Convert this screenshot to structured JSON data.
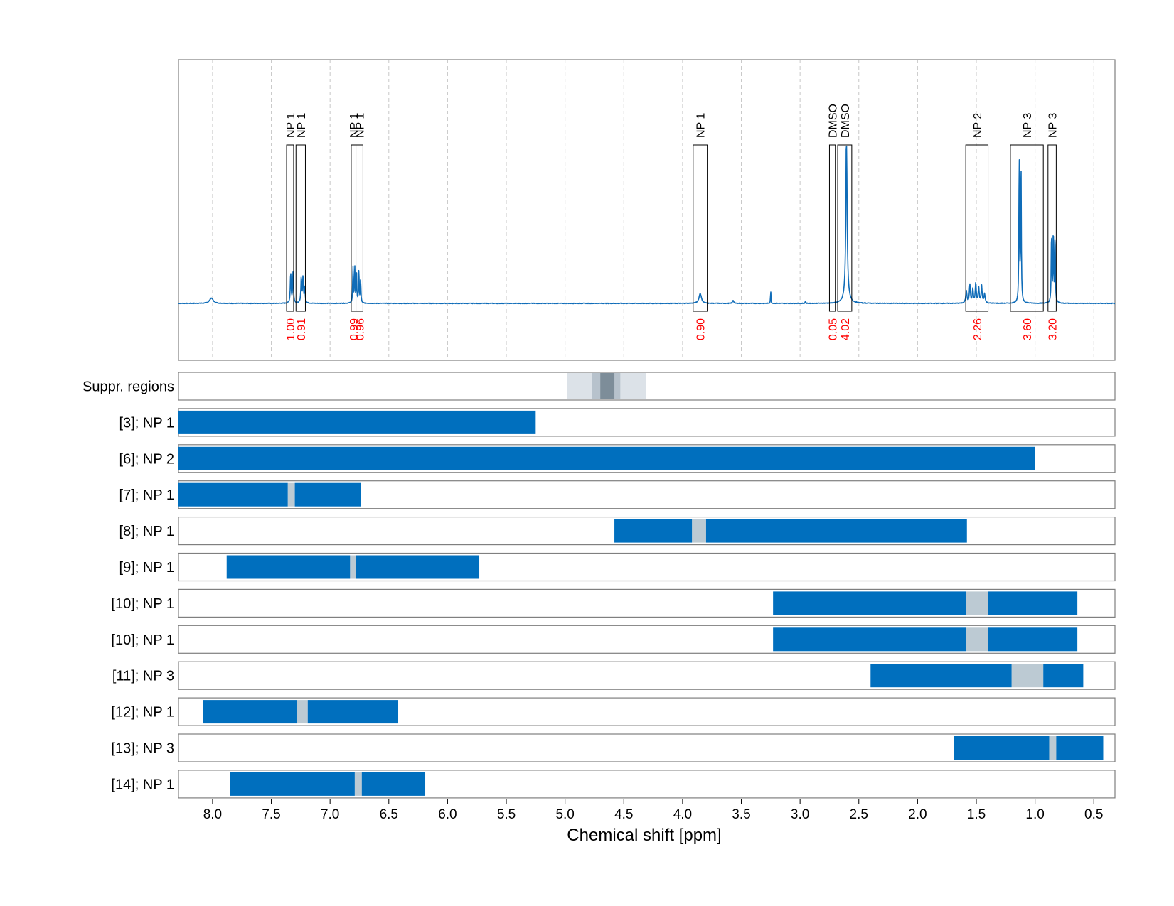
{
  "chart_data": {
    "type": "line",
    "xlabel": "Chemical shift [ppm]",
    "x_axis": {
      "reversed": true,
      "xlim": [
        8.29,
        0.32
      ],
      "ticks": [
        "8.0",
        "7.5",
        "7.0",
        "6.5",
        "6.0",
        "5.5",
        "5.0",
        "4.5",
        "4.0",
        "3.5",
        "3.0",
        "2.5",
        "2.0",
        "1.5",
        "1.0",
        "0.5"
      ]
    },
    "grid": "dashed vertical at each tick",
    "spectrum": {
      "color": "#0f6cb8",
      "baseline_noise": 0.004,
      "peaks": [
        {
          "ppm": 8.01,
          "height": 0.035,
          "width": 0.018
        },
        {
          "ppm": 7.335,
          "height": 0.2,
          "width": 0.004
        },
        {
          "ppm": 7.315,
          "height": 0.2,
          "width": 0.004
        },
        {
          "ppm": 7.245,
          "height": 0.17,
          "width": 0.004
        },
        {
          "ppm": 7.23,
          "height": 0.17,
          "width": 0.004
        },
        {
          "ppm": 7.215,
          "height": 0.1,
          "width": 0.004
        },
        {
          "ppm": 6.805,
          "height": 0.24,
          "width": 0.003
        },
        {
          "ppm": 6.79,
          "height": 0.24,
          "width": 0.003
        },
        {
          "ppm": 6.775,
          "height": 0.2,
          "width": 0.003
        },
        {
          "ppm": 6.755,
          "height": 0.22,
          "width": 0.003
        },
        {
          "ppm": 6.74,
          "height": 0.15,
          "width": 0.003
        },
        {
          "ppm": 3.85,
          "height": 0.065,
          "width": 0.012
        },
        {
          "ppm": 3.57,
          "height": 0.02,
          "width": 0.006
        },
        {
          "ppm": 3.25,
          "height": 0.09,
          "width": 0.002
        },
        {
          "ppm": 2.955,
          "height": 0.012,
          "width": 0.003
        },
        {
          "ppm": 2.605,
          "height": 1.0,
          "width": 0.004
        },
        {
          "ppm": 2.605,
          "height": 0.3,
          "width": 0.012
        },
        {
          "ppm": 1.585,
          "height": 0.08,
          "width": 0.006
        },
        {
          "ppm": 1.555,
          "height": 0.12,
          "width": 0.005
        },
        {
          "ppm": 1.53,
          "height": 0.09,
          "width": 0.005
        },
        {
          "ppm": 1.505,
          "height": 0.13,
          "width": 0.005
        },
        {
          "ppm": 1.48,
          "height": 0.1,
          "width": 0.005
        },
        {
          "ppm": 1.455,
          "height": 0.11,
          "width": 0.005
        },
        {
          "ppm": 1.43,
          "height": 0.06,
          "width": 0.006
        },
        {
          "ppm": 1.135,
          "height": 1.0,
          "width": 0.003
        },
        {
          "ppm": 1.12,
          "height": 0.95,
          "width": 0.003
        },
        {
          "ppm": 0.86,
          "height": 0.48,
          "width": 0.003
        },
        {
          "ppm": 0.845,
          "height": 0.5,
          "width": 0.003
        },
        {
          "ppm": 0.83,
          "height": 0.46,
          "width": 0.003
        }
      ]
    },
    "integrals": [
      {
        "ppm_left": 7.37,
        "ppm_right": 7.31,
        "label": "NP 1",
        "value": "1.00"
      },
      {
        "ppm_left": 7.29,
        "ppm_right": 7.21,
        "label": "NP 1",
        "value": "0.91"
      },
      {
        "ppm_left": 6.82,
        "ppm_right": 6.78,
        "label": "NP 1",
        "value": "0.99"
      },
      {
        "ppm_left": 6.78,
        "ppm_right": 6.72,
        "label": "NP 1",
        "value": "0.96"
      },
      {
        "ppm_left": 3.91,
        "ppm_right": 3.79,
        "label": "NP 1",
        "value": "0.90"
      },
      {
        "ppm_left": 2.75,
        "ppm_right": 2.7,
        "label": "DMSO",
        "value": "0.05"
      },
      {
        "ppm_left": 2.68,
        "ppm_right": 2.56,
        "label": "DMSO",
        "value": "4.02"
      },
      {
        "ppm_left": 1.59,
        "ppm_right": 1.4,
        "label": "NP 2",
        "value": "2.26"
      },
      {
        "ppm_left": 1.21,
        "ppm_right": 0.93,
        "label": "NP 3",
        "value": "3.60"
      },
      {
        "ppm_left": 0.89,
        "ppm_right": 0.82,
        "label": "NP 3",
        "value": "3.20"
      }
    ],
    "suppression_row": {
      "label": "Suppr. regions",
      "bands": [
        {
          "from": 4.98,
          "to": 4.31,
          "color": "#dce2e8"
        },
        {
          "from": 4.77,
          "to": 4.53,
          "color": "#b7c2cc"
        },
        {
          "from": 4.7,
          "to": 4.58,
          "color": "#7d8d99"
        }
      ]
    },
    "tracks": [
      {
        "label": "[3]; NP 1",
        "segments": [
          [
            8.29,
            5.25
          ]
        ],
        "gaps": []
      },
      {
        "label": "[6]; NP 2",
        "segments": [
          [
            8.29,
            1.0
          ]
        ],
        "gaps": []
      },
      {
        "label": "[7]; NP 1",
        "segments": [
          [
            8.29,
            7.36
          ],
          [
            7.3,
            6.74
          ]
        ],
        "gaps": [
          [
            7.36,
            7.3
          ]
        ]
      },
      {
        "label": "[8]; NP 1",
        "segments": [
          [
            4.58,
            3.92
          ],
          [
            3.8,
            1.58
          ]
        ],
        "gaps": [
          [
            3.92,
            3.8
          ]
        ]
      },
      {
        "label": "[9]; NP 1",
        "segments": [
          [
            7.88,
            6.83
          ],
          [
            6.78,
            5.73
          ]
        ],
        "gaps": [
          [
            6.83,
            6.78
          ]
        ]
      },
      {
        "label": "[10]; NP 1",
        "segments": [
          [
            3.23,
            1.59
          ],
          [
            1.4,
            0.64
          ]
        ],
        "gaps": [
          [
            1.59,
            1.4
          ]
        ]
      },
      {
        "label": "[10]; NP 1",
        "segments": [
          [
            3.23,
            1.59
          ],
          [
            1.4,
            0.64
          ]
        ],
        "gaps": [
          [
            1.59,
            1.4
          ]
        ]
      },
      {
        "label": "[11]; NP 3",
        "segments": [
          [
            2.4,
            1.2
          ],
          [
            0.93,
            0.59
          ]
        ],
        "gaps": [
          [
            1.2,
            0.93
          ]
        ]
      },
      {
        "label": "[12]; NP 1",
        "segments": [
          [
            8.08,
            7.28
          ],
          [
            7.19,
            6.42
          ]
        ],
        "gaps": [
          [
            7.28,
            7.19
          ]
        ]
      },
      {
        "label": "[13]; NP 3",
        "segments": [
          [
            1.69,
            0.88
          ],
          [
            0.82,
            0.42
          ]
        ],
        "gaps": [
          [
            0.88,
            0.82
          ]
        ]
      },
      {
        "label": "[14]; NP 1",
        "segments": [
          [
            7.85,
            6.79
          ],
          [
            6.73,
            6.19
          ]
        ],
        "gaps": [
          [
            6.79,
            6.73
          ]
        ]
      }
    ],
    "colors": {
      "bar": "#006fbe",
      "gap": "#bccad3",
      "integral_value": "#ff0000",
      "frame": "#7f7f7f",
      "grid": "#c8c8c8"
    }
  }
}
